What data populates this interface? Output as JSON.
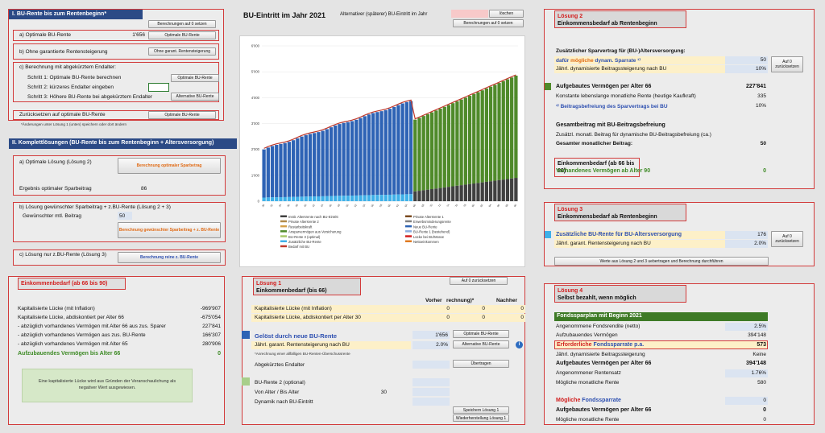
{
  "left": {
    "sec1_title": "I. BU-Rente bis zum Rentenbeginn*",
    "reset_btn": "Berechnungen auf 0 setzen",
    "a_label": "a) Optimale BU-Rente",
    "a_value": "1'656",
    "a_btn": "Optimale BU-Rente",
    "b_label": "b) Ohne garantierte Rentensteigerung",
    "b_btn": "Ohne garant. Rentensteigerung",
    "c_label": "c) Berechnung mit abgekürztem Endalter:",
    "step1": "Schritt 1: Optimale BU-Rente berechnen",
    "step1_btn": "Optimale BU-Rente",
    "step2": "Schritt 2: kürzeres Endalter eingeben",
    "step3": "Schritt 3: Höhere BU-Rente bei abgekürztem Endalter",
    "step3_btn": "Alternative BU-Rente",
    "back_label": "Zurücksetzen auf optimale BU-Rente",
    "back_btn": "Optimale BU-Rente",
    "footnote": "*Änderungen unter Lösung 1 (unten) speichern oder dort ändern",
    "sec2_title": "II. Komplettlösungen (BU-Rente bis zum Rentenbeginn + Altersversorgung)",
    "s2a_label": "a) Optimale Lösung (Lösung 2)",
    "s2a_btn": "Berechnung optimaler Sparbetrag",
    "s2a_result_label": "Ergebnis optimaler Sparbeitrag",
    "s2a_result": "86",
    "s2b_label": "b) Lösung gewünschter Sparbeitrag + z.BU-Rente (Lösung 2 + 3)",
    "s2b_sub": "Gewünschter mtl. Beitrag",
    "s2b_value": "50",
    "s2b_btn": "Berechnung gewünschter Sparbeitrag + z. BU-Rente",
    "s2c_label": "c) Lösung nur z.BU-Rente (Lösung 3)",
    "s2c_btn": "Berechnung reine z. BU-Rente"
  },
  "ekb": {
    "title": "Einkommenbedarf (ab 66 bis 90)",
    "rows": [
      {
        "label": "Kapitalisierte Lücke (mit Inflation)",
        "value": "-969'907"
      },
      {
        "label": "Kapitalisierte Lücke, abdiskontiert per Alter 66",
        "value": "-675'054"
      },
      {
        "label": "- abzüglich vorhandenes Vermögen mit Alter 66 aus zus. Sparer",
        "value": "227'841"
      },
      {
        "label": "- abzüglich vorhandenes Vermögen aus zus. BU-Rente",
        "value": "166'307"
      },
      {
        "label": "- abzüglich vorhandenes Vermögen mit Alter 65",
        "value": "280'906"
      }
    ],
    "total_label": "Aufzubauendes Vermögen bis Alter 66",
    "total_value": "0",
    "info": "Eine kapitalisierte Lücke wird aus Gründen der Veranschaulichung als negativer Wert ausgewiesen."
  },
  "top": {
    "title": "BU-Eintritt im Jahr 2021",
    "alt_label": "Alternativer (späterer) BU-Eintritt im Jahr",
    "delete_btn": "löschen",
    "reset_btn": "Berechnungen auf 0 setzen"
  },
  "chart_data": {
    "type": "bar",
    "title": "",
    "ylim": [
      0,
      6000
    ],
    "yticks": [
      "0",
      "1'000",
      "2'000",
      "3'000",
      "4'000",
      "5'000",
      "6'000"
    ],
    "xticks": [
      "30",
      "32",
      "34",
      "36",
      "38",
      "40",
      "42",
      "44",
      "46",
      "48",
      "50",
      "52",
      "54",
      "56",
      "58",
      "60",
      "62",
      "64",
      "66",
      "68",
      "70",
      "72",
      "74",
      "76",
      "78",
      "80",
      "82",
      "84",
      "86",
      "88",
      "90"
    ],
    "phase1": {
      "start_age": 30,
      "end_age": 65,
      "start_value": 2000,
      "end_value": 3860
    },
    "phase2": {
      "start_age": 66,
      "end_age": 90,
      "start_value": 3150,
      "end_value": 4850,
      "dark_start": 380,
      "dark_end": 900
    },
    "legend": [
      {
        "name": "Instit. Altersrente nach BU-Eintritt",
        "color": "#404040"
      },
      {
        "name": "Private Altersrente 1",
        "color": "#7a4a1f"
      },
      {
        "name": "Private Altersrente 2",
        "color": "#b0894a"
      },
      {
        "name": "Erwerbsminderungsrente",
        "color": "#808080"
      },
      {
        "name": "Restarbeitskraft",
        "color": "#d4a04a"
      },
      {
        "name": "Neue BU-Rente",
        "color": "#2e63b5"
      },
      {
        "name": "Ansparvermögen aus Versicherung",
        "color": "#4f8a2a"
      },
      {
        "name": "BU-Rente 1 (bestehend)",
        "color": "#8aaee0"
      },
      {
        "name": "BU-Rente 3 (optimal)",
        "color": "#a7c86a"
      },
      {
        "name": "Lücke bei BU/Monat",
        "color": "#d21f1f"
      },
      {
        "name": "Zusätzliche BU-Rente",
        "color": "#3fb0e8"
      },
      {
        "name": "Nettoeinkommen",
        "color": "#e07a20"
      },
      {
        "name": "Bedarf mit BU",
        "color": "#c0392b"
      }
    ]
  },
  "l1": {
    "title_prefix": "Lösung 1",
    "title": "Einkommenbedarf (bis 66)",
    "reset_btn": "Auf 0 zurücksetzen",
    "col_vorher": "Vorher",
    "col_vorher_star": "Vorher (nach Berechnung)*",
    "col_nachher": "Nachher",
    "row1_label": "Kapitalisierte Lücke (mit Inflation)",
    "row1_v1": "0",
    "row1_v2": "0",
    "row1_v3": "0",
    "row2_label": "Kapitalisierte Lücke, abdiskontiert per Alter 30",
    "row2_v1": "0",
    "row2_v2": "0",
    "row2_v3": "0",
    "solved_label": "Gelöst durch neue BU-Rente",
    "solved_value": "1'656",
    "solved_btn": "Optimale BU-Rente",
    "garant_label": "Jährl. garant. Rentensteigerung nach BU",
    "garant_value": "2.0%",
    "garant_btn": "Alternative BU-Rente",
    "footnote": "*Anrechnung einer allfälligen BU-Renten-Überschussrente",
    "abg_label": "Abgekürztes Endalter",
    "abg_btn": "Übertragen",
    "bu2_label": "BU-Rente 2 (optional)",
    "von_label": "Von Alter / Bis Alter",
    "von_value": "30",
    "dyn_label": "Dynamik nach BU-Eintritt",
    "save_btn": "Speichern Lösung 1",
    "restore_btn": "Wiederherstellung Lösung 1"
  },
  "l2": {
    "title_prefix": "Lösung 2",
    "title": "Einkommensbedarf ab Rentenbeginn",
    "subhead": "Zusätzlicher Sparvertrag für (BU-)Altersversorgung:",
    "spar_prefix": "dafür",
    "spar_mid": "mögliche",
    "spar_suffix": "dynam. Sparrate",
    "spar_value": "50",
    "reset_btn": "Auf 0 zurücksetzen",
    "dyn_label": "Jährl. dynamisierte Beitragssteigerung nach BU",
    "dyn_value": "10%",
    "verm_label": "Aufgebautes Vermögen per Alter 66",
    "verm_value": "227'841",
    "konst_label": "Konstante lebenslange monatliche Rente (heutige Kaufkraft)",
    "konst_value": "335",
    "befr_label": "Beitragsbefreiung des Sparvertrags bei BU",
    "befr_value": "10%",
    "ges_head": "Gesamtbeitrag mit BU-Beitragsbefreiung",
    "zus_label": "Zusätzl. monatl. Beitrag für dynamische BU-Beitragsbefreiung (ca.)",
    "gesamt_label": "Gesamter monatlicher Beitrag:",
    "gesamt_value": "50",
    "ekb_label": "Einkommenbedarf (ab 66 bis 90)",
    "vorh_label": "Vorhandenes Vermögen ab Alter 90",
    "vorh_value": "0"
  },
  "l3": {
    "title_prefix": "Lösung 3",
    "title": "Einkommensbedarf ab Rentenbeginn",
    "zus_label": "Zusätzliche BU-Rente für BU-Altersversorgung",
    "zus_value": "176",
    "reset_btn": "Auf 0 zurücksetzen",
    "garant_label": "Jährl. garant. Rentensteigerung nach BU",
    "garant_value": "2.0%",
    "transfer_btn": "Werte aus Lösung 2 und 3 uebertragen und Berechnung durchführen"
  },
  "l4": {
    "title_prefix": "Lösung 4",
    "title": "Selbst bezahlt, wenn möglich",
    "fonds_head": "Fondssparplan mit Beginn 2021",
    "rendite_label": "Angenommene Fondsrendite (netto)",
    "rendite_value": "2.5%",
    "aufzu_label": "Aufzubauendes Vermögen",
    "aufzu_value": "394'148",
    "erf_prefix": "Erforderliche",
    "erf_suffix": "Fondssparrate p.a.",
    "erf_value": "573",
    "dyn_label": "Jährl. dynamisierte Beitragssteigerung",
    "dyn_value": "Keine",
    "aufg_label": "Aufgebautes Vermögen per Alter 66",
    "aufg_value": "394'148",
    "renten_label": "Angenommener Rentensatz",
    "renten_value": "1.76%",
    "mogl_label": "Mögliche monatliche Rente",
    "mogl_value": "580",
    "mfs_prefix": "Mögliche",
    "mfs_suffix": "Fondssparrate",
    "mfs_value": "0",
    "aufg2_label": "Aufgebautes Vermögen per Alter 66",
    "aufg2_value": "0",
    "mogl2_label": "Mögliche monatliche Rente",
    "mogl2_value": "0"
  }
}
